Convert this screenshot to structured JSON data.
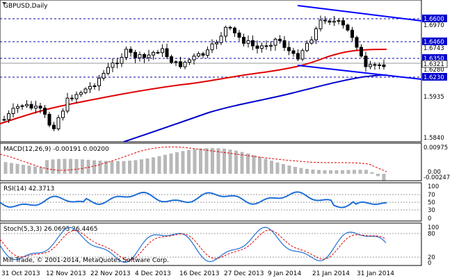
{
  "header": {
    "symbol_tf": "GBPUSD,Daily"
  },
  "macd": {
    "label": "MACD(12,26,9) -0.00191 0.00200"
  },
  "rsi": {
    "label": "RSI(14) 42.3713"
  },
  "stoch": {
    "label": "Stoch(5,3,3) 26.0695 26.4465"
  },
  "copyright": "Mill Trade, © 2001-2014, MetaQuotes Software Corp.",
  "colors": {
    "candle": "#000000",
    "ma_red": "#e00000",
    "ma_blue": "#0000cc",
    "trendline": "#0000ff",
    "indicator_line": "#1e6fd6",
    "signal_red": "#e00000",
    "macd_hist": "#b8b8b8",
    "level_dashed": "#0000aa"
  },
  "price_axis": {
    "visible_ticks": [
      "1.6970",
      "1.6280",
      "1.5935",
      "1.5840"
    ],
    "highlight_levels": [
      "1.6600",
      "1.6460",
      "1.6350",
      "1.6321",
      "1.6230"
    ],
    "partial_label": "1.6743"
  },
  "macd_axis": {
    "ticks": [
      "0.00975",
      "0.00",
      "-0.00247"
    ]
  },
  "rsi_axis": {
    "ticks": [
      "100",
      "70",
      "50",
      "30",
      "0"
    ]
  },
  "stoch_axis": {
    "ticks": [
      "100",
      "80",
      "20",
      "0"
    ]
  },
  "time_axis": {
    "labels": [
      "31 Oct 2013",
      "12 Nov 2013",
      "22 Nov 2013",
      "4 Dec 2013",
      "16 Dec 2013",
      "27 Dec 2013",
      "9 Jan 2014",
      "21 Jan 2014",
      "31 Jan 2014"
    ]
  }
}
